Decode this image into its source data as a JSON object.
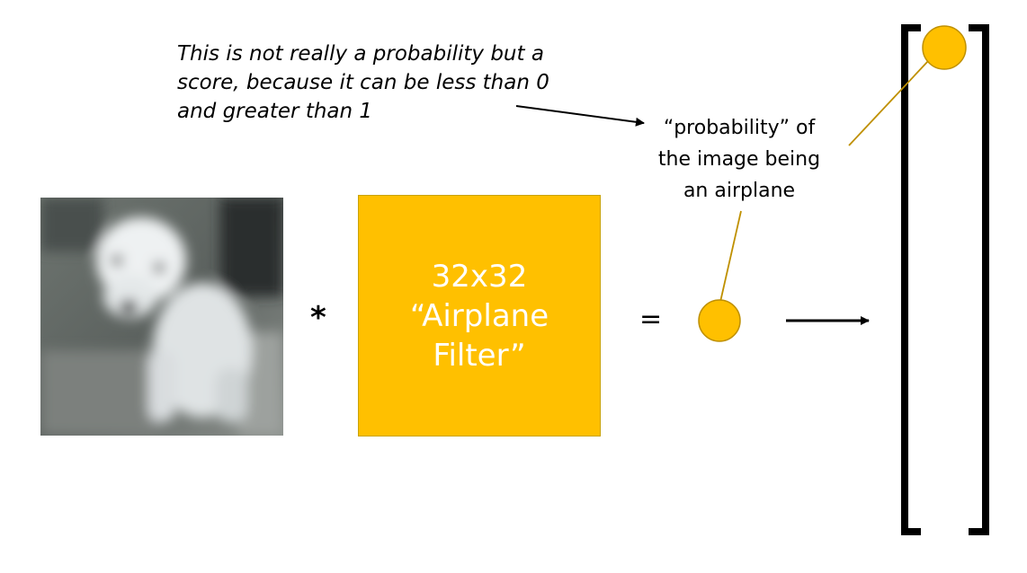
{
  "annotation": {
    "line1": "This is not really a probability but a",
    "line2": "score, because it can be less than 0",
    "line3": "and greater than 1"
  },
  "score_label": {
    "line1": "“probability” of",
    "line2": "the image being",
    "line3": "an airplane"
  },
  "operators": {
    "multiply": "*",
    "equals": "="
  },
  "filter": {
    "line1": "32x32 “Airplane",
    "line2": "Filter”",
    "color": "#FFC000"
  },
  "input_image": {
    "subject": "dog"
  },
  "colors": {
    "score_dot": "#FFC000",
    "connector": "#BF9000",
    "arrow": "#000000",
    "bracket": "#000000"
  }
}
